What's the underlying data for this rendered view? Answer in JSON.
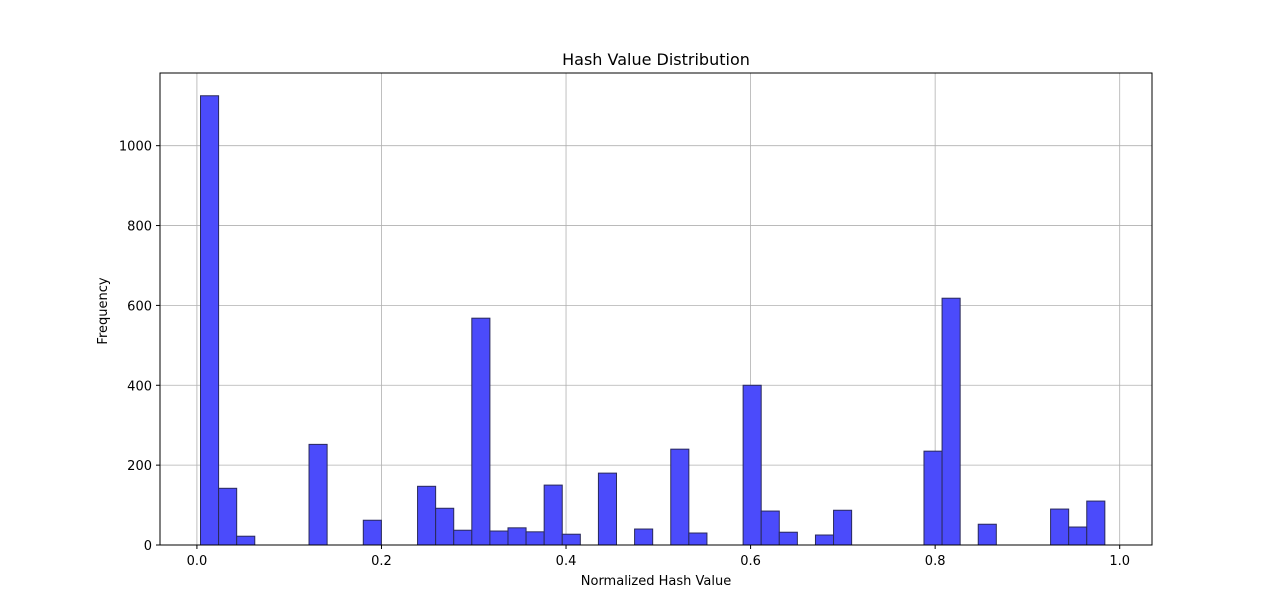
{
  "chart_data": {
    "type": "bar",
    "title": "Hash Value Distribution",
    "xlabel": "Normalized Hash Value",
    "ylabel": "Frequency",
    "xlim": [
      -0.04,
      1.035
    ],
    "ylim": [
      0,
      1182
    ],
    "x_ticks": [
      0.0,
      0.2,
      0.4,
      0.6,
      0.8,
      1.0
    ],
    "x_tick_labels": [
      "0.0",
      "0.2",
      "0.4",
      "0.6",
      "0.8",
      "1.0"
    ],
    "y_ticks": [
      0,
      200,
      400,
      600,
      800,
      1000
    ],
    "y_tick_labels": [
      "0",
      "200",
      "400",
      "600",
      "800",
      "1000"
    ],
    "grid": true,
    "bar_color": "#4b4bfb",
    "edge_color": "#2a2a5a",
    "bin_edges": [
      0.0039,
      0.0235,
      0.0431,
      0.0627,
      0.0823,
      0.1019,
      0.1215,
      0.1411,
      0.1607,
      0.1803,
      0.1999,
      0.2195,
      0.2391,
      0.2587,
      0.2783,
      0.2979,
      0.3175,
      0.3371,
      0.3567,
      0.3763,
      0.3959,
      0.4155,
      0.4351,
      0.4547,
      0.4743,
      0.4939,
      0.5135,
      0.5331,
      0.5527,
      0.5723,
      0.5919,
      0.6115,
      0.6311,
      0.6507,
      0.6703,
      0.6899,
      0.7095,
      0.7291,
      0.7487,
      0.7683,
      0.7879,
      0.8075,
      0.8271,
      0.8467,
      0.8663,
      0.8859,
      0.9055,
      0.9251,
      0.9447,
      0.9643,
      0.9839
    ],
    "values": [
      1125,
      142,
      22,
      0,
      0,
      0,
      252,
      0,
      0,
      62,
      0,
      0,
      147,
      92,
      37,
      568,
      35,
      43,
      33,
      150,
      27,
      0,
      180,
      0,
      40,
      0,
      240,
      30,
      0,
      0,
      400,
      85,
      32,
      0,
      25,
      87,
      0,
      0,
      0,
      0,
      235,
      618,
      0,
      52,
      0,
      0,
      0,
      90,
      45,
      110
    ]
  }
}
